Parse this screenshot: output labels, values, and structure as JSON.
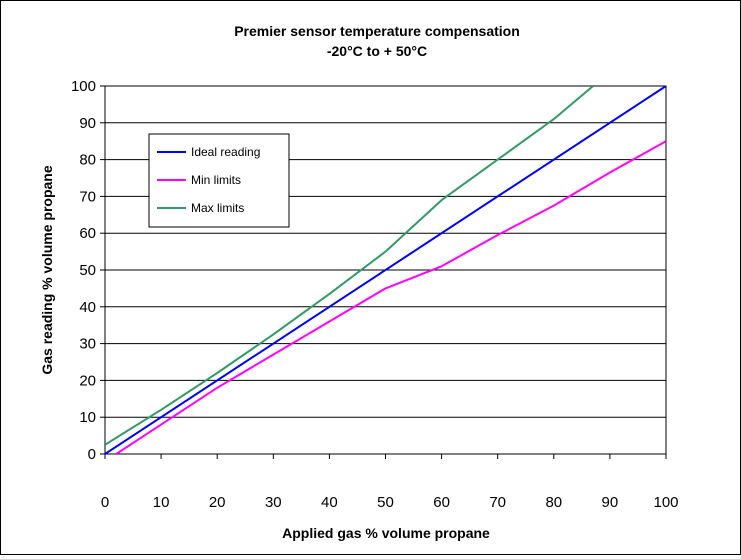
{
  "chart_data": {
    "type": "line",
    "title": "Premier sensor temperature compensation",
    "subtitle": "-20°C to + 50°C",
    "xlabel": "Applied gas % volume propane",
    "ylabel": "Gas reading % volume propane",
    "xlim": [
      0,
      100
    ],
    "ylim": [
      0,
      100
    ],
    "xticks": [
      "0",
      "10",
      "20",
      "30",
      "40",
      "50",
      "60",
      "70",
      "80",
      "90",
      "100"
    ],
    "yticks": [
      "0",
      "10",
      "20",
      "30",
      "40",
      "50",
      "60",
      "70",
      "80",
      "90",
      "100"
    ],
    "grid": "horizontal",
    "legend_position": "top-left",
    "series": [
      {
        "name": "Ideal reading",
        "color": "#0000ff",
        "x": [
          0,
          100
        ],
        "y": [
          0,
          100
        ]
      },
      {
        "name": "Min limits",
        "color": "#ff00ff",
        "x": [
          2,
          10,
          20,
          30,
          40,
          50,
          60,
          70,
          80,
          90,
          100
        ],
        "y": [
          0,
          8,
          18,
          27,
          36,
          45,
          51,
          59.5,
          67.5,
          76.5,
          85
        ]
      },
      {
        "name": "Max limits",
        "color": "#339966",
        "x": [
          0,
          10,
          20,
          30,
          40,
          50,
          60,
          70,
          80,
          87
        ],
        "y": [
          2.5,
          12,
          22,
          32.5,
          43.5,
          55,
          69,
          80,
          91,
          100
        ]
      }
    ]
  }
}
